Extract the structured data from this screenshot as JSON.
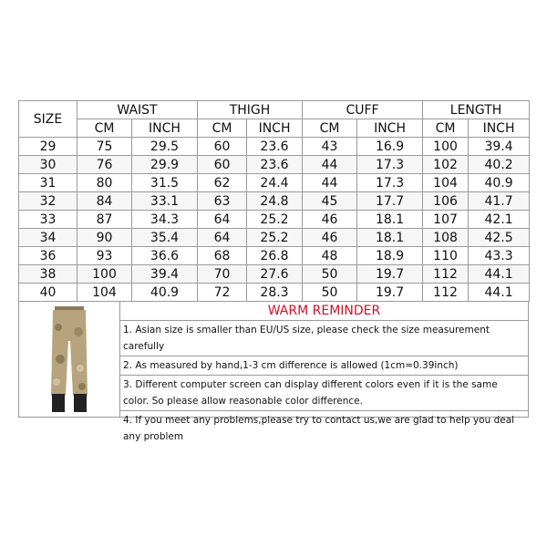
{
  "table": {
    "size_label": "SIZE",
    "groups": [
      "WAIST",
      "THIGH",
      "CUFF",
      "LENGTH"
    ],
    "units": [
      "CM",
      "INCH"
    ],
    "rows": [
      [
        "29",
        "75",
        "29.5",
        "60",
        "23.6",
        "43",
        "16.9",
        "100",
        "39.4"
      ],
      [
        "30",
        "76",
        "29.9",
        "60",
        "23.6",
        "44",
        "17.3",
        "102",
        "40.2"
      ],
      [
        "31",
        "80",
        "31.5",
        "62",
        "24.4",
        "44",
        "17.3",
        "104",
        "40.9"
      ],
      [
        "32",
        "84",
        "33.1",
        "63",
        "24.8",
        "45",
        "17.7",
        "106",
        "41.7"
      ],
      [
        "33",
        "87",
        "34.3",
        "64",
        "25.2",
        "46",
        "18.1",
        "107",
        "42.1"
      ],
      [
        "34",
        "90",
        "35.4",
        "64",
        "25.2",
        "46",
        "18.1",
        "108",
        "42.5"
      ],
      [
        "36",
        "93",
        "36.6",
        "68",
        "26.8",
        "48",
        "18.9",
        "110",
        "43.3"
      ],
      [
        "38",
        "100",
        "39.4",
        "70",
        "27.6",
        "50",
        "19.7",
        "112",
        "44.1"
      ],
      [
        "40",
        "104",
        "40.9",
        "72",
        "28.3",
        "50",
        "19.7",
        "112",
        "44.1"
      ]
    ]
  },
  "reminder": {
    "title": "WARM REMINDER",
    "title_color": "#d0112b",
    "items": [
      "1. Asian size is smaller than EU/US size, please check the size measurement carefully",
      "2. As measured by hand,1-3 cm difference is allowed (1cm=0.39inch)",
      "3. Different computer screen can display different colors even if it is the same color. So please allow reasonable color difference.",
      "4. If you meet any problems,please try to contact us,we are glad to help you deal any problem"
    ]
  }
}
